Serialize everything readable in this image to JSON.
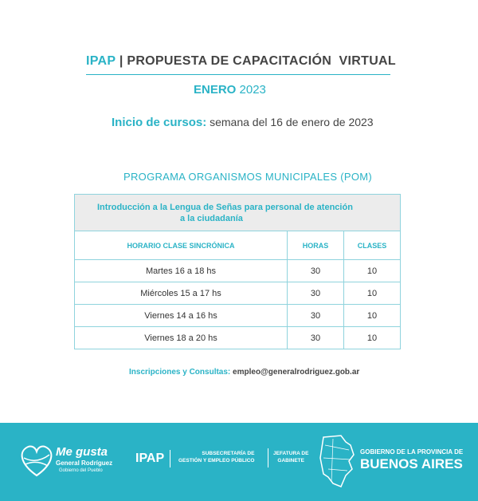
{
  "header": {
    "brand": "IPAP",
    "separator": "|",
    "title": "PROPUESTA DE CAPACITACIÓN  VIRTUAL",
    "month": "ENERO",
    "year": "2023"
  },
  "start": {
    "label": "Inicio de cursos:",
    "value": "semana del 16 de enero de 2023"
  },
  "program": "PROGRAMA ORGANISMOS MUNICIPALES (POM)",
  "table": {
    "title": [
      "Introducción a la Lengua de Señas para personal de atención",
      "a la ciudadanía"
    ],
    "columns": [
      "HORARIO   CLASE  SINCRÓNICA",
      "HORAS",
      "CLASES"
    ],
    "rows": [
      [
        "Martes 16 a 18 hs",
        "30",
        "10"
      ],
      [
        "Miércoles 15 a 17 hs",
        "30",
        "10"
      ],
      [
        "Viernes 14 a 16 hs",
        "30",
        "10"
      ],
      [
        "Viernes 18 a 20 hs",
        "30",
        "10"
      ]
    ]
  },
  "contact": {
    "label": "Inscripciones y Consultas:",
    "email": "empleo@generalrodriguez.gob.ar"
  },
  "footer": {
    "municipio": [
      "Me gusta",
      "General Rodríguez",
      "Gobierno del Pueblo"
    ],
    "ipap": "IPAP",
    "subsecretaria": [
      "SUBSECRETARÍA DE",
      "GESTIÓN Y EMPLEO PÚBLICO"
    ],
    "jefatura": [
      "JEFATURA DE",
      "GABINETE"
    ],
    "provincia": [
      "GOBIERNO DE LA PROVINCIA DE",
      "BUENOS AIRES"
    ]
  }
}
